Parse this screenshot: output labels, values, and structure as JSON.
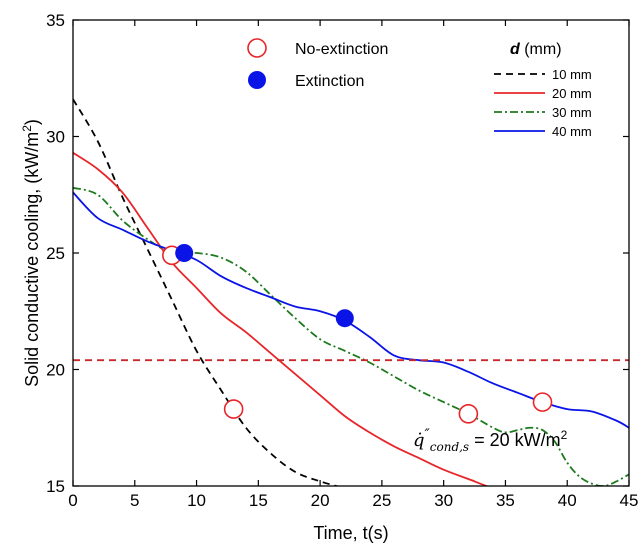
{
  "chart_data": {
    "type": "line",
    "xlabel": "Time, t(s)",
    "ylabel": "Solid conductive cooling, (kW/m",
    "ylabel_sup": "2",
    "ylabel_end": ")",
    "xlim": [
      0,
      45
    ],
    "ylim": [
      15,
      35
    ],
    "xticks": [
      0,
      5,
      10,
      15,
      20,
      25,
      30,
      35,
      40,
      45
    ],
    "yticks": [
      15,
      20,
      25,
      30,
      35
    ],
    "grid": false,
    "legend_title_italic": "d",
    "legend_title_rest": " (mm)",
    "marker_legend": [
      {
        "label": "No-extinction",
        "style": "open-circle",
        "color": "#e8262a"
      },
      {
        "label": "Extinction",
        "style": "filled-circle",
        "color": "#0a14e6"
      }
    ],
    "series": [
      {
        "name": "10 mm",
        "color": "#000000",
        "dash": "7,5",
        "x": [
          0,
          2,
          4,
          6,
          8,
          10,
          12,
          14,
          16,
          18,
          20,
          22
        ],
        "y": [
          31.6,
          29.8,
          27.4,
          25.2,
          23.0,
          20.8,
          19.1,
          17.5,
          16.4,
          15.6,
          15.2,
          14.9
        ]
      },
      {
        "name": "20 mm",
        "color": "#e8262a",
        "dash": "",
        "x": [
          0,
          2,
          4,
          6,
          8,
          10,
          12,
          14,
          16,
          18,
          20,
          22,
          24,
          26,
          28,
          30,
          32,
          34,
          36
        ],
        "y": [
          29.3,
          28.6,
          27.6,
          26.1,
          24.6,
          23.5,
          22.4,
          21.6,
          20.7,
          19.8,
          18.9,
          18.0,
          17.3,
          16.7,
          16.2,
          15.7,
          15.3,
          14.9,
          14.6
        ]
      },
      {
        "name": "30 mm",
        "color": "#1e7a1e",
        "dash": "8,3,2,3",
        "x": [
          0,
          2,
          4,
          6,
          8,
          10,
          12,
          14,
          16,
          18,
          20,
          22,
          24,
          26,
          28,
          30,
          32,
          34,
          35,
          36,
          37,
          38,
          39,
          40,
          41,
          42,
          43,
          44,
          45
        ],
        "y": [
          27.8,
          27.5,
          26.4,
          25.6,
          25.0,
          25.0,
          24.8,
          24.2,
          23.2,
          22.2,
          21.3,
          20.8,
          20.3,
          19.7,
          19.1,
          18.6,
          18.1,
          17.5,
          17.3,
          17.4,
          17.5,
          17.4,
          16.9,
          16.0,
          15.4,
          15.1,
          15.0,
          15.2,
          15.5
        ]
      },
      {
        "name": "40 mm",
        "color": "#0a14e6",
        "dash": "",
        "x": [
          0,
          2,
          4,
          6,
          8,
          10,
          12,
          14,
          16,
          18,
          20,
          22,
          24,
          26,
          28,
          30,
          32,
          34,
          36,
          38,
          40,
          42,
          44,
          45
        ],
        "y": [
          27.6,
          26.5,
          26.0,
          25.5,
          25.1,
          24.7,
          24.0,
          23.5,
          23.1,
          22.7,
          22.5,
          22.1,
          21.4,
          20.6,
          20.4,
          20.3,
          19.9,
          19.4,
          19.0,
          18.6,
          18.3,
          18.2,
          17.8,
          17.5
        ]
      }
    ],
    "markers": [
      {
        "type": "open",
        "x": 8,
        "y": 24.9
      },
      {
        "type": "open",
        "x": 13,
        "y": 18.3
      },
      {
        "type": "open",
        "x": 32,
        "y": 18.1
      },
      {
        "type": "open",
        "x": 38,
        "y": 18.6
      },
      {
        "type": "filled",
        "x": 9,
        "y": 25.0
      },
      {
        "type": "filled",
        "x": 22,
        "y": 22.2
      }
    ],
    "threshold": {
      "y": 20.4,
      "color": "#c8262a",
      "label_q": "q̇",
      "label_primes": "″",
      "label_sub": "cond,s",
      "label_rest": " = 20 kW/m",
      "label_sup": "2"
    }
  }
}
